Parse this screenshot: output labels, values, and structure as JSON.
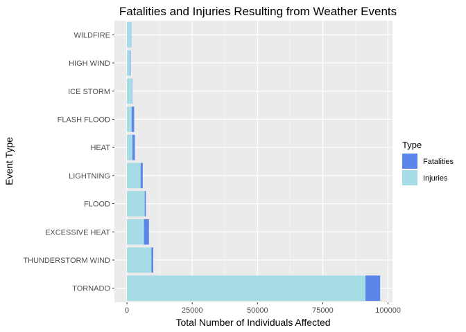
{
  "chart_data": {
    "type": "bar",
    "orientation": "horizontal",
    "stacked": true,
    "title": "Fatalities and Injuries Resulting from Weather Events",
    "xlabel": "Total Number of Individuals Affected",
    "ylabel": "Event Type",
    "xlim": [
      -4800,
      101700
    ],
    "x_ticks": [
      0,
      25000,
      50000,
      75000,
      100000
    ],
    "categories": [
      "TORNADO",
      "THUNDERSTORM WIND",
      "EXCESSIVE HEAT",
      "FLOOD",
      "LIGHTNING",
      "HEAT",
      "FLASH FLOOD",
      "ICE STORM",
      "HIGH WIND",
      "WILDFIRE"
    ],
    "series": [
      {
        "name": "Injuries",
        "color": "#a6dce5",
        "values": [
          91346,
          9353,
          6525,
          6789,
          5230,
          2100,
          1777,
          1975,
          1137,
          1606
        ]
      },
      {
        "name": "Fatalities",
        "color": "#5b86ea",
        "values": [
          5633,
          709,
          1903,
          470,
          816,
          937,
          978,
          89,
          248,
          75
        ]
      }
    ],
    "legend": {
      "title": "Type",
      "entries": [
        "Fatalities",
        "Injuries"
      ],
      "position": "right"
    },
    "grid": true
  }
}
